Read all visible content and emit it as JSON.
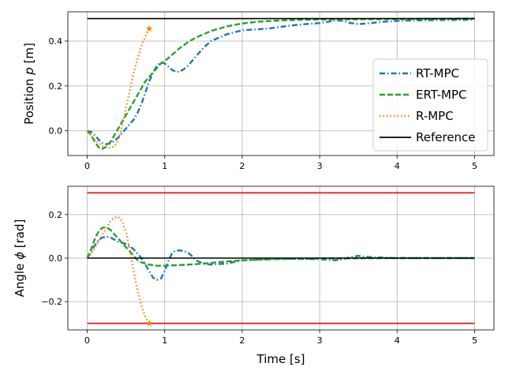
{
  "chart_data": [
    {
      "type": "line",
      "xlabel": "",
      "ylabel": "Position p [m]",
      "ylabel_parts": {
        "pre": "Position ",
        "var": "p",
        "post": " [m]"
      },
      "xlim": [
        -0.25,
        5.25
      ],
      "ylim": [
        -0.11,
        0.53
      ],
      "xticks": [
        "0",
        "1",
        "2",
        "3",
        "4",
        "5"
      ],
      "yticks": [
        "0.0",
        "0.2",
        "0.4"
      ],
      "grid": true,
      "legend_placement": "right",
      "series": [
        {
          "name": "RT-MPC",
          "color": "#1f77b4",
          "style": "dashdot",
          "x": [
            0,
            0.05,
            0.1,
            0.15,
            0.2,
            0.25,
            0.3,
            0.35,
            0.4,
            0.45,
            0.5,
            0.55,
            0.6,
            0.65,
            0.7,
            0.75,
            0.8,
            0.85,
            0.9,
            0.95,
            1.0,
            1.05,
            1.1,
            1.15,
            1.2,
            1.25,
            1.3,
            1.4,
            1.5,
            1.6,
            1.8,
            2.0,
            2.2,
            2.4,
            2.6,
            2.8,
            3.0,
            3.1,
            3.2,
            3.3,
            3.4,
            3.5,
            3.6,
            3.8,
            4.0,
            4.5,
            5.0
          ],
          "y": [
            0.0,
            -0.005,
            -0.02,
            -0.04,
            -0.055,
            -0.06,
            -0.055,
            -0.045,
            -0.03,
            -0.01,
            0.01,
            0.03,
            0.05,
            0.08,
            0.12,
            0.17,
            0.22,
            0.26,
            0.29,
            0.305,
            0.3,
            0.285,
            0.27,
            0.262,
            0.265,
            0.275,
            0.29,
            0.33,
            0.37,
            0.4,
            0.43,
            0.448,
            0.452,
            0.458,
            0.468,
            0.475,
            0.48,
            0.485,
            0.492,
            0.49,
            0.48,
            0.475,
            0.478,
            0.485,
            0.49,
            0.493,
            0.495
          ]
        },
        {
          "name": "ERT-MPC",
          "color": "#2ca02c",
          "style": "dashed",
          "x": [
            0,
            0.05,
            0.1,
            0.15,
            0.2,
            0.25,
            0.3,
            0.35,
            0.4,
            0.45,
            0.5,
            0.55,
            0.6,
            0.65,
            0.7,
            0.75,
            0.8,
            0.85,
            0.9,
            0.95,
            1.0,
            1.1,
            1.2,
            1.3,
            1.4,
            1.5,
            1.6,
            1.8,
            2.0,
            2.2,
            2.4,
            2.6,
            2.8,
            3.0,
            3.5,
            4.0,
            4.5,
            5.0
          ],
          "y": [
            0.0,
            -0.02,
            -0.05,
            -0.075,
            -0.08,
            -0.07,
            -0.05,
            -0.02,
            0.01,
            0.04,
            0.07,
            0.1,
            0.13,
            0.16,
            0.19,
            0.22,
            0.24,
            0.26,
            0.28,
            0.3,
            0.31,
            0.34,
            0.37,
            0.395,
            0.415,
            0.43,
            0.445,
            0.465,
            0.478,
            0.486,
            0.49,
            0.493,
            0.495,
            0.496,
            0.497,
            0.498,
            0.499,
            0.5
          ]
        },
        {
          "name": "R-MPC",
          "color": "#ff7f0e",
          "style": "dotted",
          "x": [
            0,
            0.05,
            0.1,
            0.15,
            0.2,
            0.25,
            0.3,
            0.35,
            0.4,
            0.45,
            0.5,
            0.55,
            0.6,
            0.65,
            0.7,
            0.75,
            0.8
          ],
          "y": [
            0.0,
            -0.02,
            -0.04,
            -0.055,
            -0.07,
            -0.075,
            -0.075,
            -0.07,
            -0.04,
            0.02,
            0.1,
            0.18,
            0.26,
            0.32,
            0.38,
            0.42,
            0.455
          ],
          "end_marker": "star"
        },
        {
          "name": "Reference",
          "color": "#000000",
          "style": "solid",
          "x": [
            0,
            5
          ],
          "y": [
            0.5,
            0.5
          ]
        }
      ]
    },
    {
      "type": "line",
      "xlabel": "Time [s]",
      "ylabel": "Angle ϕ [rad]",
      "ylabel_parts": {
        "pre": "Angle ",
        "var": "ϕ",
        "post": " [rad]"
      },
      "xlim": [
        -0.25,
        5.25
      ],
      "ylim": [
        -0.33,
        0.33
      ],
      "xticks": [
        "0",
        "1",
        "2",
        "3",
        "4",
        "5"
      ],
      "yticks": [
        "−0.2",
        "0.0",
        "0.2"
      ],
      "grid": true,
      "series": [
        {
          "color": "#1f77b4",
          "style": "dashdot",
          "x": [
            0,
            0.05,
            0.1,
            0.15,
            0.2,
            0.25,
            0.3,
            0.35,
            0.4,
            0.45,
            0.5,
            0.55,
            0.6,
            0.65,
            0.7,
            0.75,
            0.8,
            0.85,
            0.9,
            0.95,
            1.0,
            1.05,
            1.1,
            1.15,
            1.2,
            1.25,
            1.3,
            1.35,
            1.4,
            1.5,
            1.6,
            1.8,
            2.0,
            2.5,
            3.0,
            3.2,
            3.3,
            3.4,
            3.5,
            3.6,
            4.0,
            5.0
          ],
          "y": [
            0.0,
            0.03,
            0.06,
            0.085,
            0.095,
            0.098,
            0.095,
            0.085,
            0.075,
            0.07,
            0.065,
            0.055,
            0.04,
            0.02,
            0.0,
            -0.03,
            -0.06,
            -0.09,
            -0.1,
            -0.095,
            -0.06,
            -0.01,
            0.025,
            0.035,
            0.035,
            0.032,
            0.025,
            0.01,
            -0.01,
            -0.025,
            -0.03,
            -0.025,
            -0.01,
            -0.003,
            -0.005,
            -0.01,
            -0.005,
            0.005,
            0.01,
            0.005,
            0.0,
            0.0
          ]
        },
        {
          "color": "#2ca02c",
          "style": "dashed",
          "x": [
            0,
            0.05,
            0.1,
            0.15,
            0.2,
            0.25,
            0.3,
            0.35,
            0.4,
            0.45,
            0.5,
            0.55,
            0.6,
            0.65,
            0.7,
            0.8,
            0.9,
            1.0,
            1.2,
            1.4,
            1.6,
            1.8,
            2.0,
            2.5,
            3.0,
            4.0,
            5.0
          ],
          "y": [
            0.0,
            0.04,
            0.09,
            0.125,
            0.14,
            0.14,
            0.13,
            0.11,
            0.09,
            0.07,
            0.05,
            0.03,
            0.01,
            -0.01,
            -0.02,
            -0.03,
            -0.035,
            -0.035,
            -0.032,
            -0.028,
            -0.022,
            -0.015,
            -0.01,
            -0.004,
            -0.002,
            0.0,
            0.0
          ]
        },
        {
          "color": "#ff7f0e",
          "style": "dotted",
          "x": [
            0,
            0.05,
            0.1,
            0.15,
            0.2,
            0.25,
            0.3,
            0.35,
            0.4,
            0.45,
            0.5,
            0.55,
            0.6,
            0.65,
            0.7,
            0.75,
            0.8
          ],
          "y": [
            0.0,
            0.02,
            0.05,
            0.08,
            0.11,
            0.14,
            0.17,
            0.185,
            0.19,
            0.17,
            0.12,
            0.04,
            -0.06,
            -0.15,
            -0.22,
            -0.27,
            -0.3
          ],
          "end_marker": "star"
        },
        {
          "color": "#000000",
          "style": "solid",
          "x": [
            0,
            5
          ],
          "y": [
            0.0,
            0.0
          ]
        },
        {
          "color": "#ff0000",
          "style": "solid",
          "x": [
            0,
            5
          ],
          "y": [
            0.3,
            0.3
          ]
        },
        {
          "color": "#ff0000",
          "style": "solid",
          "x": [
            0,
            5
          ],
          "y": [
            -0.3,
            -0.3
          ]
        }
      ]
    }
  ]
}
